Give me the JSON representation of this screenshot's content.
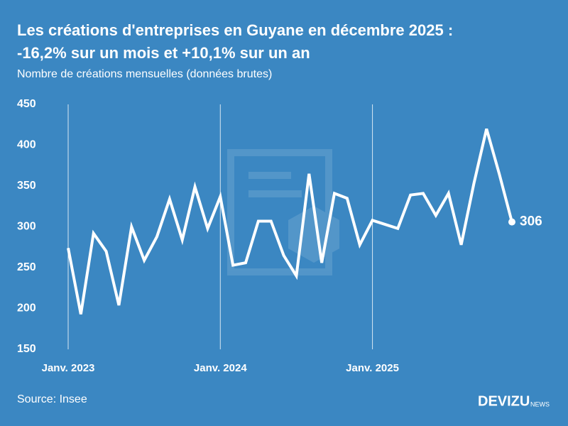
{
  "chart_data": {
    "type": "line",
    "title": "Les créations d'entreprises en Guyane en décembre 2025 :",
    "title_line2": "-16,2% sur un mois et +10,1% sur un an",
    "subtitle": "Nombre de créations mensuelles (données brutes)",
    "source": "Source: Insee",
    "brand": "DEVIZU",
    "brand_suffix": "NEWS",
    "categories": [
      "Janv. 2023",
      null,
      null,
      null,
      null,
      null,
      null,
      null,
      null,
      null,
      null,
      null,
      "Janv. 2024",
      null,
      null,
      null,
      null,
      null,
      null,
      null,
      null,
      null,
      null,
      null,
      "Janv. 2025",
      null,
      null,
      null,
      null,
      null,
      null,
      null,
      null,
      null,
      null,
      null
    ],
    "values": [
      274,
      193,
      292,
      270,
      204,
      300,
      259,
      288,
      334,
      284,
      349,
      298,
      337,
      253,
      256,
      307,
      307,
      265,
      240,
      365,
      256,
      341,
      335,
      278,
      308,
      303,
      298,
      339,
      341,
      314,
      341,
      278,
      353,
      420,
      365,
      306
    ],
    "color": "#ffffff",
    "ylim": [
      150,
      450
    ],
    "yticks": [
      150,
      200,
      250,
      300,
      350,
      400,
      450
    ],
    "last_value_label": true
  }
}
